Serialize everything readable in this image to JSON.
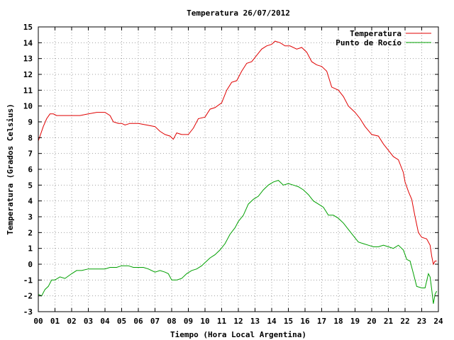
{
  "chart_data": {
    "type": "line",
    "title": "Temperatura 26/07/2012",
    "xlabel": "Tiempo (Hora Local Argentina)",
    "ylabel": "Temperatura (Grados Celsius)",
    "xlim": [
      0,
      24
    ],
    "ylim": [
      -3,
      15
    ],
    "x_ticks": [
      "00",
      "01",
      "02",
      "03",
      "04",
      "05",
      "06",
      "07",
      "08",
      "09",
      "10",
      "11",
      "12",
      "13",
      "14",
      "15",
      "16",
      "17",
      "18",
      "19",
      "20",
      "21",
      "22",
      "23",
      "24"
    ],
    "y_ticks": [
      "-3",
      "-2",
      "-1",
      "0",
      "1",
      "2",
      "3",
      "4",
      "5",
      "6",
      "7",
      "8",
      "9",
      "10",
      "11",
      "12",
      "13",
      "14",
      "15"
    ],
    "grid": true,
    "legend_position": "top-right",
    "series": [
      {
        "name": "Temperatura",
        "color": "#e00000",
        "points": [
          [
            0.0,
            7.8
          ],
          [
            0.1,
            8.1
          ],
          [
            0.3,
            8.7
          ],
          [
            0.5,
            9.2
          ],
          [
            0.7,
            9.5
          ],
          [
            0.9,
            9.5
          ],
          [
            1.1,
            9.4
          ],
          [
            1.5,
            9.4
          ],
          [
            2.0,
            9.4
          ],
          [
            2.5,
            9.4
          ],
          [
            3.0,
            9.5
          ],
          [
            3.5,
            9.6
          ],
          [
            4.0,
            9.6
          ],
          [
            4.3,
            9.4
          ],
          [
            4.5,
            9.0
          ],
          [
            4.8,
            8.9
          ],
          [
            5.0,
            8.9
          ],
          [
            5.2,
            8.8
          ],
          [
            5.5,
            8.9
          ],
          [
            6.0,
            8.9
          ],
          [
            6.5,
            8.8
          ],
          [
            7.0,
            8.7
          ],
          [
            7.3,
            8.4
          ],
          [
            7.6,
            8.2
          ],
          [
            7.9,
            8.1
          ],
          [
            8.1,
            7.9
          ],
          [
            8.3,
            8.3
          ],
          [
            8.6,
            8.2
          ],
          [
            9.0,
            8.2
          ],
          [
            9.3,
            8.6
          ],
          [
            9.6,
            9.2
          ],
          [
            10.0,
            9.3
          ],
          [
            10.3,
            9.8
          ],
          [
            10.6,
            9.9
          ],
          [
            11.0,
            10.2
          ],
          [
            11.3,
            11.0
          ],
          [
            11.6,
            11.5
          ],
          [
            11.9,
            11.6
          ],
          [
            12.2,
            12.2
          ],
          [
            12.5,
            12.7
          ],
          [
            12.8,
            12.8
          ],
          [
            13.1,
            13.2
          ],
          [
            13.4,
            13.6
          ],
          [
            13.7,
            13.8
          ],
          [
            14.0,
            13.9
          ],
          [
            14.2,
            14.1
          ],
          [
            14.5,
            14.0
          ],
          [
            14.8,
            13.8
          ],
          [
            15.1,
            13.8
          ],
          [
            15.5,
            13.6
          ],
          [
            15.8,
            13.7
          ],
          [
            16.1,
            13.4
          ],
          [
            16.4,
            12.8
          ],
          [
            16.7,
            12.6
          ],
          [
            17.0,
            12.5
          ],
          [
            17.3,
            12.2
          ],
          [
            17.6,
            11.2
          ],
          [
            18.0,
            11.0
          ],
          [
            18.3,
            10.6
          ],
          [
            18.6,
            10.0
          ],
          [
            19.0,
            9.6
          ],
          [
            19.3,
            9.2
          ],
          [
            19.6,
            8.7
          ],
          [
            20.0,
            8.2
          ],
          [
            20.4,
            8.1
          ],
          [
            20.7,
            7.6
          ],
          [
            21.0,
            7.2
          ],
          [
            21.3,
            6.8
          ],
          [
            21.6,
            6.6
          ],
          [
            21.9,
            5.8
          ],
          [
            22.0,
            5.2
          ],
          [
            22.2,
            4.6
          ],
          [
            22.4,
            4.1
          ],
          [
            22.6,
            3.0
          ],
          [
            22.8,
            2.0
          ],
          [
            23.0,
            1.7
          ],
          [
            23.3,
            1.6
          ],
          [
            23.5,
            1.2
          ],
          [
            23.6,
            0.5
          ],
          [
            23.7,
            0.0
          ],
          [
            23.8,
            0.2
          ],
          [
            23.9,
            0.2
          ]
        ]
      },
      {
        "name": "Punto de Rocío",
        "color": "#00a000",
        "points": [
          [
            0.0,
            -1.9
          ],
          [
            0.2,
            -2.0
          ],
          [
            0.4,
            -1.6
          ],
          [
            0.6,
            -1.4
          ],
          [
            0.8,
            -1.0
          ],
          [
            1.0,
            -1.0
          ],
          [
            1.3,
            -0.8
          ],
          [
            1.6,
            -0.9
          ],
          [
            2.0,
            -0.6
          ],
          [
            2.3,
            -0.4
          ],
          [
            2.6,
            -0.4
          ],
          [
            3.0,
            -0.3
          ],
          [
            3.5,
            -0.3
          ],
          [
            4.0,
            -0.3
          ],
          [
            4.3,
            -0.2
          ],
          [
            4.7,
            -0.2
          ],
          [
            5.0,
            -0.1
          ],
          [
            5.4,
            -0.1
          ],
          [
            5.7,
            -0.2
          ],
          [
            6.0,
            -0.2
          ],
          [
            6.3,
            -0.2
          ],
          [
            6.6,
            -0.3
          ],
          [
            7.0,
            -0.5
          ],
          [
            7.3,
            -0.4
          ],
          [
            7.6,
            -0.5
          ],
          [
            7.8,
            -0.6
          ],
          [
            8.0,
            -1.0
          ],
          [
            8.3,
            -1.0
          ],
          [
            8.6,
            -0.9
          ],
          [
            8.9,
            -0.6
          ],
          [
            9.2,
            -0.4
          ],
          [
            9.5,
            -0.3
          ],
          [
            9.8,
            -0.1
          ],
          [
            10.0,
            0.1
          ],
          [
            10.3,
            0.4
          ],
          [
            10.6,
            0.6
          ],
          [
            10.9,
            0.9
          ],
          [
            11.2,
            1.3
          ],
          [
            11.5,
            1.9
          ],
          [
            11.8,
            2.3
          ],
          [
            12.0,
            2.7
          ],
          [
            12.3,
            3.1
          ],
          [
            12.6,
            3.8
          ],
          [
            12.9,
            4.1
          ],
          [
            13.2,
            4.3
          ],
          [
            13.5,
            4.7
          ],
          [
            13.8,
            5.0
          ],
          [
            14.1,
            5.2
          ],
          [
            14.4,
            5.3
          ],
          [
            14.7,
            5.0
          ],
          [
            15.0,
            5.1
          ],
          [
            15.3,
            5.0
          ],
          [
            15.6,
            4.9
          ],
          [
            15.9,
            4.7
          ],
          [
            16.2,
            4.4
          ],
          [
            16.5,
            4.0
          ],
          [
            16.8,
            3.8
          ],
          [
            17.1,
            3.6
          ],
          [
            17.4,
            3.1
          ],
          [
            17.7,
            3.1
          ],
          [
            18.0,
            2.9
          ],
          [
            18.3,
            2.6
          ],
          [
            18.6,
            2.2
          ],
          [
            18.9,
            1.8
          ],
          [
            19.2,
            1.4
          ],
          [
            19.5,
            1.3
          ],
          [
            19.8,
            1.2
          ],
          [
            20.1,
            1.1
          ],
          [
            20.4,
            1.1
          ],
          [
            20.7,
            1.2
          ],
          [
            21.0,
            1.1
          ],
          [
            21.3,
            1.0
          ],
          [
            21.6,
            1.2
          ],
          [
            21.9,
            0.9
          ],
          [
            22.1,
            0.3
          ],
          [
            22.3,
            0.2
          ],
          [
            22.5,
            -0.6
          ],
          [
            22.7,
            -1.4
          ],
          [
            23.0,
            -1.5
          ],
          [
            23.2,
            -1.5
          ],
          [
            23.4,
            -0.6
          ],
          [
            23.5,
            -0.8
          ],
          [
            23.6,
            -1.6
          ],
          [
            23.7,
            -2.5
          ],
          [
            23.8,
            -1.9
          ],
          [
            23.9,
            -1.7
          ]
        ]
      }
    ]
  }
}
